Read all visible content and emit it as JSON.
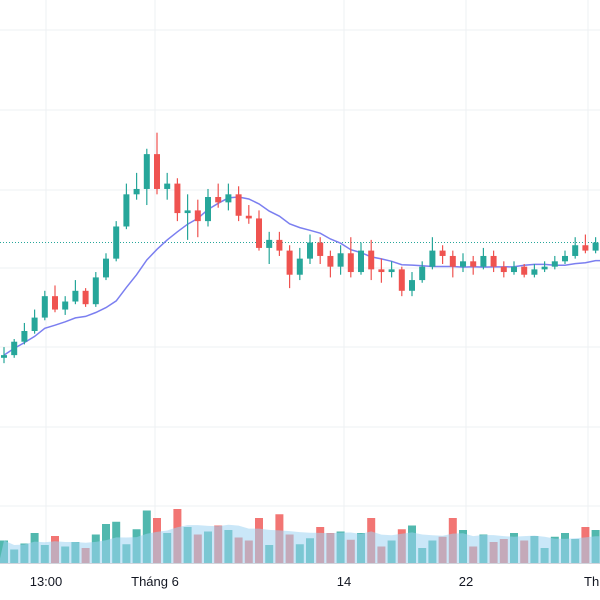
{
  "chart_data": {
    "type": "candlestick",
    "x_tick_labels": [
      "13:00",
      "Tháng 6",
      "14",
      "22",
      "Th"
    ],
    "colors": {
      "up": "#26a69a",
      "down": "#ef5350",
      "ma_line": "#7b7ff0",
      "grid": "#eef0f3",
      "last_price_line": "#26a69a",
      "volume_up": "#26a69a",
      "volume_down": "#ef5350",
      "volume_ma_fill": "#9fd3f2"
    },
    "price_range": [
      0,
      100
    ],
    "volume_range": [
      0,
      100
    ],
    "last_price": 58,
    "candles": [
      [
        15,
        16,
        19,
        13,
        30
      ],
      [
        16,
        21,
        22,
        15,
        18
      ],
      [
        21,
        25,
        28,
        20,
        26
      ],
      [
        25,
        30,
        33,
        24,
        40
      ],
      [
        30,
        38,
        40,
        29,
        24
      ],
      [
        38,
        33,
        42,
        32,
        36
      ],
      [
        33,
        36,
        38,
        31,
        22
      ],
      [
        36,
        40,
        44,
        35,
        28
      ],
      [
        40,
        35,
        41,
        34,
        20
      ],
      [
        35,
        45,
        47,
        34,
        38
      ],
      [
        45,
        52,
        54,
        44,
        52
      ],
      [
        52,
        64,
        66,
        51,
        55
      ],
      [
        64,
        76,
        80,
        63,
        25
      ],
      [
        76,
        78,
        84,
        74,
        45
      ],
      [
        78,
        91,
        93,
        72,
        70
      ],
      [
        91,
        78,
        99,
        76,
        60
      ],
      [
        78,
        80,
        84,
        74,
        40
      ],
      [
        80,
        69,
        82,
        66,
        72
      ],
      [
        69,
        70,
        76,
        59,
        48
      ],
      [
        70,
        66,
        74,
        60,
        38
      ],
      [
        66,
        75,
        78,
        64,
        42
      ],
      [
        75,
        73,
        80,
        71,
        50
      ],
      [
        73,
        76,
        80,
        70,
        44
      ],
      [
        76,
        68,
        79,
        66,
        34
      ],
      [
        68,
        67,
        72,
        65,
        30
      ],
      [
        67,
        56,
        70,
        55,
        60
      ],
      [
        56,
        59,
        62,
        50,
        24
      ],
      [
        59,
        55,
        62,
        53,
        65
      ],
      [
        55,
        46,
        57,
        41,
        38
      ],
      [
        46,
        52,
        56,
        44,
        25
      ],
      [
        52,
        58,
        61,
        50,
        33
      ],
      [
        58,
        53,
        60,
        50,
        48
      ],
      [
        53,
        49,
        55,
        45,
        40
      ],
      [
        49,
        54,
        57,
        46,
        42
      ],
      [
        54,
        47,
        60,
        45,
        31
      ],
      [
        47,
        55,
        58,
        46,
        40
      ],
      [
        55,
        48,
        59,
        44,
        60
      ],
      [
        48,
        47,
        52,
        43,
        22
      ],
      [
        47,
        48,
        51,
        45,
        30
      ],
      [
        48,
        40,
        49,
        38,
        45
      ],
      [
        40,
        44,
        47,
        38,
        50
      ],
      [
        44,
        49,
        51,
        43,
        20
      ],
      [
        49,
        55,
        60,
        48,
        30
      ],
      [
        55,
        53,
        57,
        50,
        35
      ],
      [
        53,
        49,
        55,
        45,
        60
      ],
      [
        49,
        51,
        54,
        47,
        44
      ],
      [
        51,
        49,
        53,
        46,
        22
      ],
      [
        49,
        53,
        56,
        48,
        38
      ],
      [
        53,
        49,
        55,
        47,
        28
      ],
      [
        49,
        47,
        51,
        45,
        32
      ],
      [
        47,
        49,
        51,
        46,
        40
      ],
      [
        49,
        46,
        50,
        45,
        30
      ],
      [
        46,
        48,
        50,
        45,
        36
      ],
      [
        48,
        49,
        51,
        47,
        20
      ],
      [
        49,
        51,
        53,
        48,
        35
      ],
      [
        51,
        53,
        55,
        50,
        40
      ],
      [
        53,
        57,
        60,
        52,
        32
      ],
      [
        57,
        55,
        61,
        54,
        48
      ],
      [
        55,
        58,
        60,
        54,
        44
      ]
    ]
  }
}
